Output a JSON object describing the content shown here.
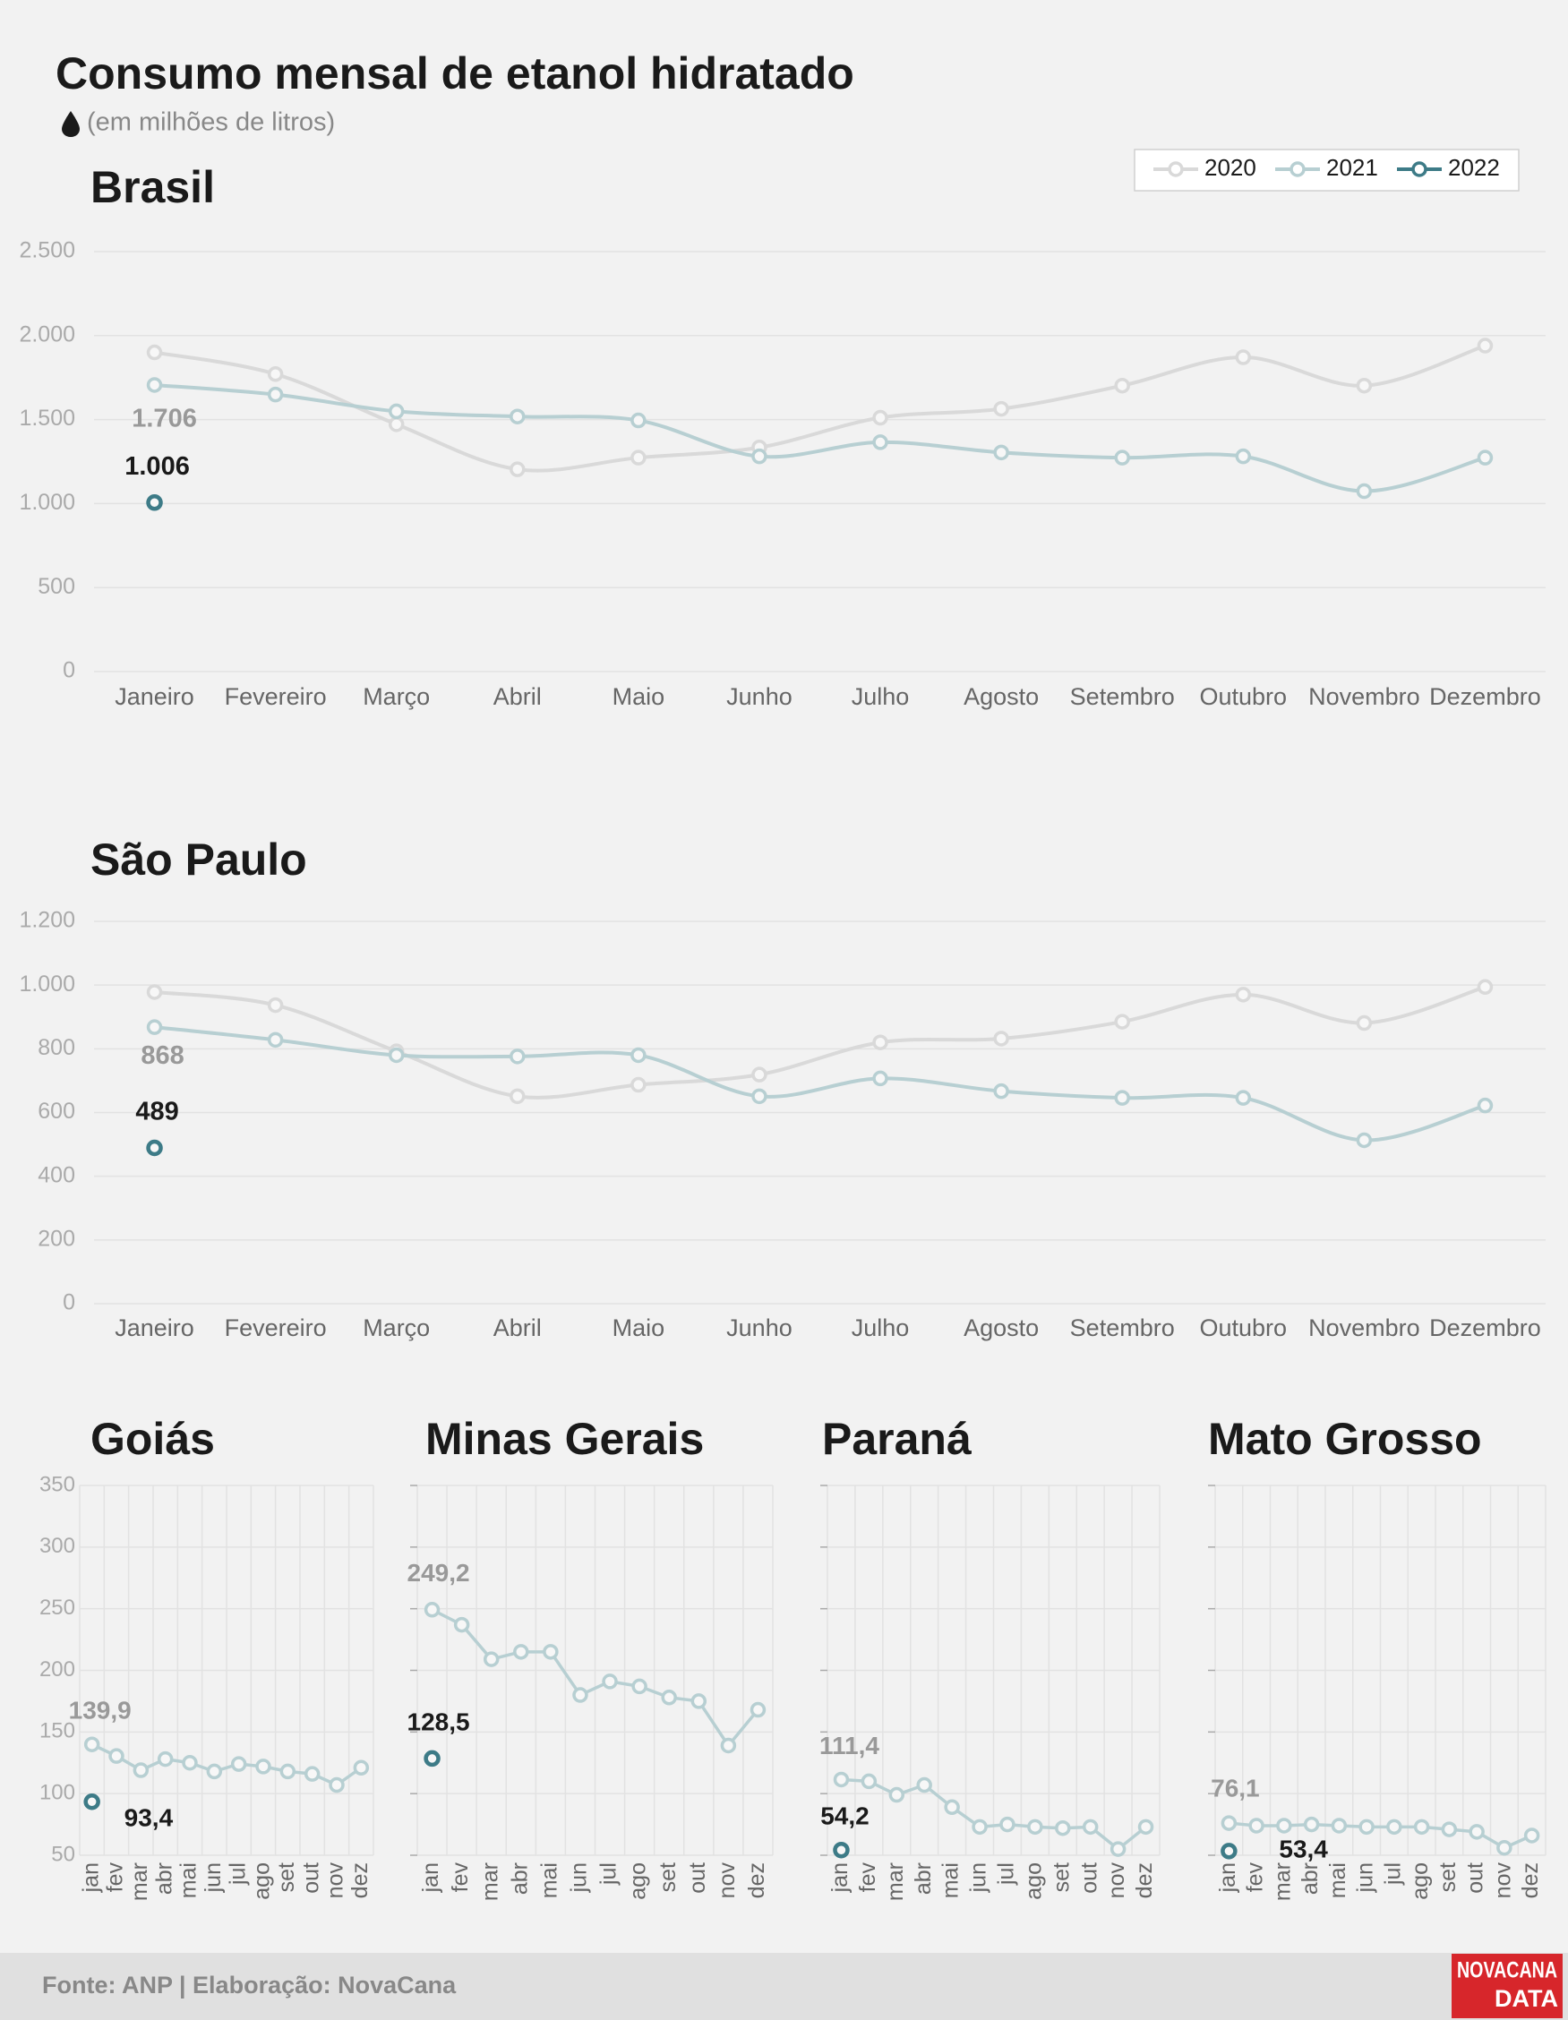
{
  "header": {
    "title": "Consumo mensal de etanol hidratado",
    "subtitle": "(em milhões de litros)"
  },
  "chart_data": [
    {
      "type": "line",
      "title": "Brasil",
      "smooth": true,
      "grid": "y",
      "legend": "top-right",
      "show_ytick_labels": true,
      "categories": [
        "Janeiro",
        "Fevereiro",
        "Março",
        "Abril",
        "Maio",
        "Junho",
        "Julho",
        "Agosto",
        "Setembro",
        "Outubro",
        "Novembro",
        "Dezembro"
      ],
      "ylim": [
        0,
        2500
      ],
      "yticks": [
        0,
        500,
        {
          "value": 1000,
          "label": "1.000"
        },
        {
          "value": 1500,
          "label": "1.500"
        },
        {
          "value": 2000,
          "label": "2.000"
        },
        {
          "value": 2500,
          "label": "2.500"
        }
      ],
      "series": [
        {
          "name": "2020",
          "color": "#d9d9d9",
          "values": [
            1900,
            1771,
            1472,
            1204,
            1273,
            1334,
            1511,
            1564,
            1702,
            1871,
            1702,
            1940
          ]
        },
        {
          "name": "2021",
          "color": "#b7cfd2",
          "values": [
            1706,
            1649,
            1549,
            1518,
            1495,
            1281,
            1365,
            1304,
            1273,
            1281,
            1074,
            1273
          ],
          "value_labels": [
            "1.706",
            null,
            null,
            null,
            null,
            null,
            null,
            null,
            null,
            null,
            null,
            null
          ]
        },
        {
          "name": "2022",
          "color": "#3d7b87",
          "values": [
            1006,
            null,
            null,
            null,
            null,
            null,
            null,
            null,
            null,
            null,
            null,
            null
          ],
          "value_labels": [
            "1.006",
            null,
            null,
            null,
            null,
            null,
            null,
            null,
            null,
            null,
            null,
            null
          ]
        }
      ]
    },
    {
      "type": "line",
      "title": "São Paulo",
      "smooth": true,
      "grid": "y",
      "show_ytick_labels": true,
      "categories": [
        "Janeiro",
        "Fevereiro",
        "Março",
        "Abril",
        "Maio",
        "Junho",
        "Julho",
        "Agosto",
        "Setembro",
        "Outubro",
        "Novembro",
        "Dezembro"
      ],
      "ylim": [
        0,
        1200
      ],
      "yticks": [
        0,
        200,
        400,
        600,
        800,
        {
          "value": 1000,
          "label": "1.000"
        },
        {
          "value": 1200,
          "label": "1.200"
        }
      ],
      "series": [
        {
          "name": "2020",
          "color": "#d9d9d9",
          "values": [
            978,
            937,
            792,
            651,
            687,
            719,
            820,
            832,
            885,
            970,
            881,
            994
          ]
        },
        {
          "name": "2021",
          "color": "#b7cfd2",
          "values": [
            868,
            828,
            780,
            776,
            780,
            651,
            707,
            667,
            646,
            646,
            513,
            622
          ],
          "value_labels": [
            "868",
            null,
            null,
            null,
            null,
            null,
            null,
            null,
            null,
            null,
            null,
            null
          ]
        },
        {
          "name": "2022",
          "color": "#3d7b87",
          "values": [
            489,
            null,
            null,
            null,
            null,
            null,
            null,
            null,
            null,
            null,
            null,
            null
          ],
          "value_labels": [
            "489",
            null,
            null,
            null,
            null,
            null,
            null,
            null,
            null,
            null,
            null,
            null
          ]
        }
      ]
    },
    {
      "type": "line",
      "title": "Goiás",
      "smooth": false,
      "grid": "both",
      "show_ytick_labels": true,
      "categories": [
        "jan",
        "fev",
        "mar",
        "abr",
        "mai",
        "jun",
        "jul",
        "ago",
        "set",
        "out",
        "nov",
        "dez"
      ],
      "ylim": [
        50,
        350
      ],
      "yticks": [
        50,
        100,
        150,
        200,
        250,
        300,
        350
      ],
      "series": [
        {
          "name": "2021",
          "color": "#b7cfd2",
          "values": [
            139.9,
            130.5,
            119,
            128,
            125,
            118,
            124,
            122,
            118,
            116,
            107,
            121
          ],
          "value_labels": [
            "139,9",
            null,
            null,
            null,
            null,
            null,
            null,
            null,
            null,
            null,
            null,
            null
          ]
        },
        {
          "name": "2022",
          "color": "#3d7b87",
          "values": [
            93.4,
            null,
            null,
            null,
            null,
            null,
            null,
            null,
            null,
            null,
            null,
            null
          ],
          "value_labels": [
            "93,4",
            null,
            null,
            null,
            null,
            null,
            null,
            null,
            null,
            null,
            null,
            null
          ]
        }
      ]
    },
    {
      "type": "line",
      "title": "Minas Gerais",
      "smooth": false,
      "grid": "both",
      "show_ytick_labels": false,
      "categories": [
        "jan",
        "fev",
        "mar",
        "abr",
        "mai",
        "jun",
        "jul",
        "ago",
        "set",
        "out",
        "nov",
        "dez"
      ],
      "ylim": [
        50,
        350
      ],
      "yticks": [
        50,
        100,
        150,
        200,
        250,
        300,
        350
      ],
      "series": [
        {
          "name": "2021",
          "color": "#b7cfd2",
          "values": [
            249.2,
            237,
            209,
            215,
            215,
            180,
            191,
            187,
            178,
            175,
            139,
            168
          ],
          "value_labels": [
            "249,2",
            null,
            null,
            null,
            null,
            null,
            null,
            null,
            null,
            null,
            null,
            null
          ]
        },
        {
          "name": "2022",
          "color": "#3d7b87",
          "values": [
            128.5,
            null,
            null,
            null,
            null,
            null,
            null,
            null,
            null,
            null,
            null,
            null
          ],
          "value_labels": [
            "128,5",
            null,
            null,
            null,
            null,
            null,
            null,
            null,
            null,
            null,
            null,
            null
          ]
        }
      ]
    },
    {
      "type": "line",
      "title": "Paraná",
      "smooth": false,
      "grid": "both",
      "show_ytick_labels": false,
      "categories": [
        "jan",
        "fev",
        "mar",
        "abr",
        "mai",
        "jun",
        "jul",
        "ago",
        "set",
        "out",
        "nov",
        "dez"
      ],
      "ylim": [
        50,
        350
      ],
      "yticks": [
        50,
        100,
        150,
        200,
        250,
        300,
        350
      ],
      "series": [
        {
          "name": "2021",
          "color": "#b7cfd2",
          "values": [
            111.4,
            110,
            99,
            107,
            89,
            73,
            75,
            73,
            72,
            73,
            55,
            73
          ],
          "value_labels": [
            "111,4",
            null,
            null,
            null,
            null,
            null,
            null,
            null,
            null,
            null,
            null,
            null
          ]
        },
        {
          "name": "2022",
          "color": "#3d7b87",
          "values": [
            54.2,
            null,
            null,
            null,
            null,
            null,
            null,
            null,
            null,
            null,
            null,
            null
          ],
          "value_labels": [
            "54,2",
            null,
            null,
            null,
            null,
            null,
            null,
            null,
            null,
            null,
            null,
            null
          ]
        }
      ]
    },
    {
      "type": "line",
      "title": "Mato Grosso",
      "smooth": false,
      "grid": "both",
      "show_ytick_labels": false,
      "categories": [
        "jan",
        "fev",
        "mar",
        "abr",
        "mai",
        "jun",
        "jul",
        "ago",
        "set",
        "out",
        "nov",
        "dez"
      ],
      "ylim": [
        50,
        350
      ],
      "yticks": [
        50,
        100,
        150,
        200,
        250,
        300,
        350
      ],
      "series": [
        {
          "name": "2021",
          "color": "#b7cfd2",
          "values": [
            76.1,
            74,
            74,
            75,
            74,
            73,
            73,
            73,
            71,
            69,
            56,
            66
          ],
          "value_labels": [
            "76,1",
            null,
            null,
            null,
            null,
            null,
            null,
            null,
            null,
            null,
            null,
            null
          ]
        },
        {
          "name": "2022",
          "color": "#3d7b87",
          "values": [
            53.4,
            null,
            null,
            null,
            null,
            null,
            null,
            null,
            null,
            null,
            null,
            null
          ],
          "value_labels": [
            "53,4",
            null,
            null,
            null,
            null,
            null,
            null,
            null,
            null,
            null,
            null,
            null
          ]
        }
      ]
    }
  ],
  "footer": {
    "source": "Fonte: ANP | Elaboração: NovaCana",
    "logo": [
      "NOVACANA",
      "DATA"
    ]
  }
}
